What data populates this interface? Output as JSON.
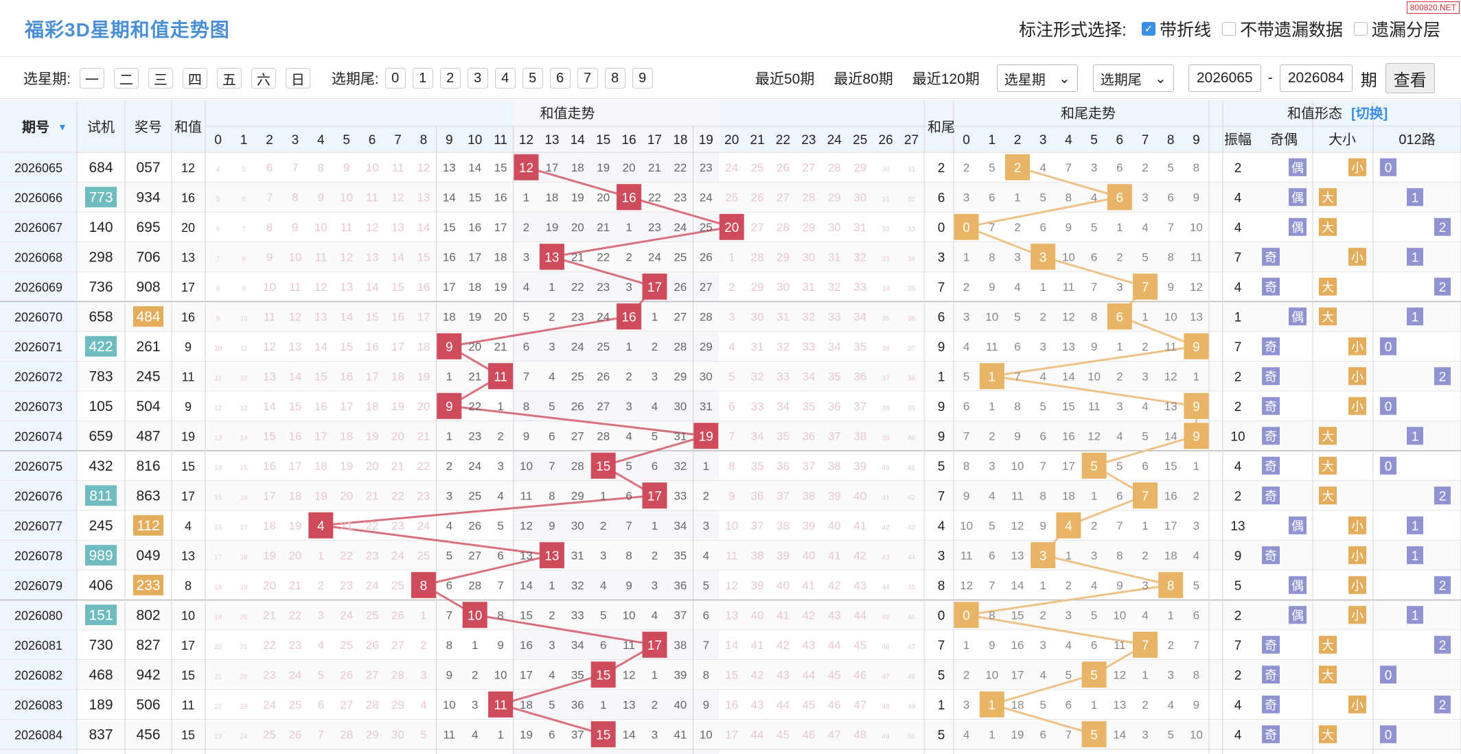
{
  "header": {
    "title": "福彩3D星期和值走势图",
    "logo": "800820.NET",
    "mark_label": "标注形式选择:",
    "options": [
      {
        "label": "带折线",
        "checked": true
      },
      {
        "label": "不带遗漏数据",
        "checked": false
      },
      {
        "label": "遗漏分层",
        "checked": false
      }
    ]
  },
  "toolbar": {
    "week_label": "选星期:",
    "weekdays": [
      "一",
      "二",
      "三",
      "四",
      "五",
      "六",
      "日"
    ],
    "tail_label": "选期尾:",
    "tails": [
      "0",
      "1",
      "2",
      "3",
      "4",
      "5",
      "6",
      "7",
      "8",
      "9"
    ],
    "links": [
      "最近50期",
      "最近80期",
      "最近120期"
    ],
    "week_select": "选星期",
    "tail_select": "选期尾",
    "from": "2026065",
    "dash": "-",
    "to": "2026084",
    "period_label": "期",
    "query": "查看"
  },
  "table": {
    "headers": {
      "period": "期号",
      "trial": "试机",
      "draw": "奖号",
      "sum": "和值",
      "sum_trend": "和值走势",
      "tail": "和尾",
      "tail_trend": "和尾走势",
      "shape": "和值形态",
      "switch": "[切换]",
      "amp": "振幅",
      "oe": "奇偶",
      "bs": "大小",
      "route": "012路"
    },
    "colors": {
      "sum_ball": "#cf4a5a",
      "tail_ball": "#e8b566",
      "sum_line": "#d9707e",
      "tail_line": "#eec286",
      "odd": "#8f93d1",
      "even": "#8f93d1",
      "big": "#e3ad5b",
      "small": "#e3ad5b",
      "route": "#8f93d1",
      "trial_mark": "#6fbcc0",
      "draw_mark": "#e3ad5b"
    },
    "rows": [
      {
        "p": "2026065",
        "t": "684",
        "d": "057",
        "s": 12,
        "tail": 2,
        "amp": 2,
        "oe": "偶",
        "bs": "小",
        "r": 0,
        "tm": false,
        "dm": false
      },
      {
        "p": "2026066",
        "t": "773",
        "d": "934",
        "s": 16,
        "tail": 6,
        "amp": 4,
        "oe": "偶",
        "bs": "大",
        "r": 1,
        "tm": true,
        "dm": false
      },
      {
        "p": "2026067",
        "t": "140",
        "d": "695",
        "s": 20,
        "tail": 0,
        "amp": 4,
        "oe": "偶",
        "bs": "大",
        "r": 2,
        "tm": false,
        "dm": false
      },
      {
        "p": "2026068",
        "t": "298",
        "d": "706",
        "s": 13,
        "tail": 3,
        "amp": 7,
        "oe": "奇",
        "bs": "小",
        "r": 1,
        "tm": false,
        "dm": false
      },
      {
        "p": "2026069",
        "t": "736",
        "d": "908",
        "s": 17,
        "tail": 7,
        "amp": 4,
        "oe": "奇",
        "bs": "大",
        "r": 2,
        "tm": false,
        "dm": false
      },
      {
        "p": "2026070",
        "t": "658",
        "d": "484",
        "s": 16,
        "tail": 6,
        "amp": 1,
        "oe": "偶",
        "bs": "大",
        "r": 1,
        "tm": false,
        "dm": true
      },
      {
        "p": "2026071",
        "t": "422",
        "d": "261",
        "s": 9,
        "tail": 9,
        "amp": 7,
        "oe": "奇",
        "bs": "小",
        "r": 0,
        "tm": true,
        "dm": false
      },
      {
        "p": "2026072",
        "t": "783",
        "d": "245",
        "s": 11,
        "tail": 1,
        "amp": 2,
        "oe": "奇",
        "bs": "小",
        "r": 2,
        "tm": false,
        "dm": false
      },
      {
        "p": "2026073",
        "t": "105",
        "d": "504",
        "s": 9,
        "tail": 9,
        "amp": 2,
        "oe": "奇",
        "bs": "小",
        "r": 0,
        "tm": false,
        "dm": false
      },
      {
        "p": "2026074",
        "t": "659",
        "d": "487",
        "s": 19,
        "tail": 9,
        "amp": 10,
        "oe": "奇",
        "bs": "大",
        "r": 1,
        "tm": false,
        "dm": false
      },
      {
        "p": "2026075",
        "t": "432",
        "d": "816",
        "s": 15,
        "tail": 5,
        "amp": 4,
        "oe": "奇",
        "bs": "大",
        "r": 0,
        "tm": false,
        "dm": false
      },
      {
        "p": "2026076",
        "t": "811",
        "d": "863",
        "s": 17,
        "tail": 7,
        "amp": 2,
        "oe": "奇",
        "bs": "大",
        "r": 2,
        "tm": true,
        "dm": false
      },
      {
        "p": "2026077",
        "t": "245",
        "d": "112",
        "s": 4,
        "tail": 4,
        "amp": 13,
        "oe": "偶",
        "bs": "小",
        "r": 1,
        "tm": false,
        "dm": true
      },
      {
        "p": "2026078",
        "t": "989",
        "d": "049",
        "s": 13,
        "tail": 3,
        "amp": 9,
        "oe": "奇",
        "bs": "小",
        "r": 1,
        "tm": true,
        "dm": false
      },
      {
        "p": "2026079",
        "t": "406",
        "d": "233",
        "s": 8,
        "tail": 8,
        "amp": 5,
        "oe": "偶",
        "bs": "小",
        "r": 2,
        "tm": false,
        "dm": true
      },
      {
        "p": "2026080",
        "t": "151",
        "d": "802",
        "s": 10,
        "tail": 0,
        "amp": 2,
        "oe": "偶",
        "bs": "小",
        "r": 1,
        "tm": true,
        "dm": false
      },
      {
        "p": "2026081",
        "t": "730",
        "d": "827",
        "s": 17,
        "tail": 7,
        "amp": 7,
        "oe": "奇",
        "bs": "大",
        "r": 2,
        "tm": false,
        "dm": false
      },
      {
        "p": "2026082",
        "t": "468",
        "d": "942",
        "s": 15,
        "tail": 5,
        "amp": 2,
        "oe": "奇",
        "bs": "大",
        "r": 0,
        "tm": false,
        "dm": false
      },
      {
        "p": "2026083",
        "t": "189",
        "d": "506",
        "s": 11,
        "tail": 1,
        "amp": 4,
        "oe": "奇",
        "bs": "小",
        "r": 2,
        "tm": false,
        "dm": false
      },
      {
        "p": "2026084",
        "t": "837",
        "d": "456",
        "s": 15,
        "tail": 5,
        "amp": 4,
        "oe": "奇",
        "bs": "大",
        "r": 0,
        "tm": false,
        "dm": false
      }
    ]
  }
}
